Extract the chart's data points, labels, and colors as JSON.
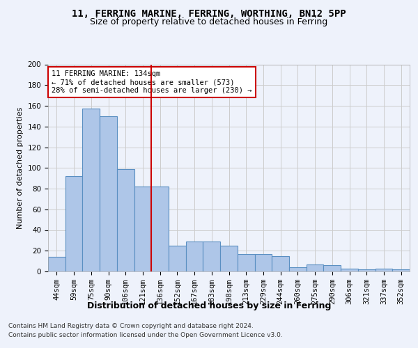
{
  "title1": "11, FERRING MARINE, FERRING, WORTHING, BN12 5PP",
  "title2": "Size of property relative to detached houses in Ferring",
  "xlabel": "Distribution of detached houses by size in Ferring",
  "ylabel": "Number of detached properties",
  "categories": [
    "44sqm",
    "59sqm",
    "75sqm",
    "90sqm",
    "106sqm",
    "121sqm",
    "136sqm",
    "152sqm",
    "167sqm",
    "183sqm",
    "198sqm",
    "213sqm",
    "229sqm",
    "244sqm",
    "260sqm",
    "275sqm",
    "290sqm",
    "306sqm",
    "321sqm",
    "337sqm",
    "352sqm"
  ],
  "values": [
    14,
    92,
    157,
    150,
    99,
    82,
    82,
    25,
    29,
    29,
    25,
    17,
    17,
    15,
    4,
    7,
    6,
    3,
    2,
    3,
    2
  ],
  "bar_color": "#aec6e8",
  "bar_edge_color": "#5a8fc2",
  "vline_index": 6,
  "vline_color": "#cc0000",
  "annotation_text": "11 FERRING MARINE: 134sqm\n← 71% of detached houses are smaller (573)\n28% of semi-detached houses are larger (230) →",
  "annotation_box_color": "#ffffff",
  "annotation_box_edge": "#cc0000",
  "ylim": [
    0,
    200
  ],
  "yticks": [
    0,
    20,
    40,
    60,
    80,
    100,
    120,
    140,
    160,
    180,
    200
  ],
  "footer1": "Contains HM Land Registry data © Crown copyright and database right 2024.",
  "footer2": "Contains public sector information licensed under the Open Government Licence v3.0.",
  "bg_color": "#eef2fb",
  "plot_bg_color": "#eef2fb",
  "title1_fontsize": 10,
  "title2_fontsize": 9,
  "ylabel_fontsize": 8,
  "tick_fontsize": 7.5,
  "annotation_fontsize": 7.5,
  "xlabel_fontsize": 9,
  "footer_fontsize": 6.5
}
